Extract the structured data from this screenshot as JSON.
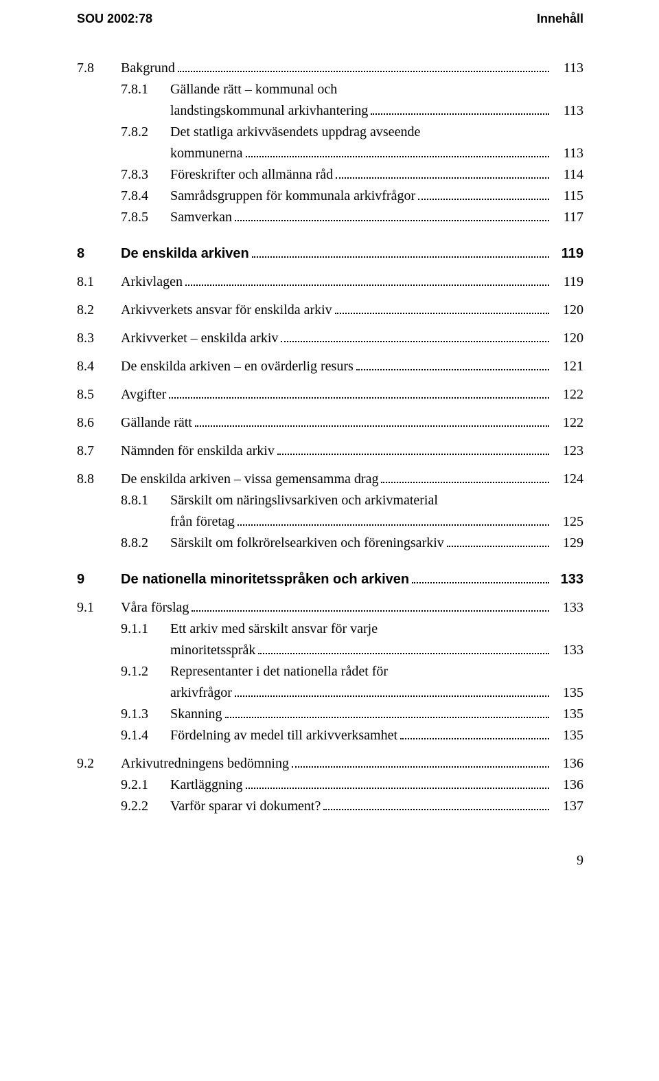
{
  "header": {
    "left": "SOU 2002:78",
    "right": "Innehåll"
  },
  "footer_page": "9",
  "toc": [
    {
      "kind": "row",
      "num": "7.8",
      "lines": [
        "Bakgrund"
      ],
      "page": "113"
    },
    {
      "kind": "sub",
      "num": "7.8.1",
      "lines": [
        "Gällande rätt – kommunal och",
        "landstingskommunal arkivhantering"
      ],
      "page": "113"
    },
    {
      "kind": "sub",
      "num": "7.8.2",
      "lines": [
        "Det statliga arkivväsendets uppdrag avseende",
        "kommunerna"
      ],
      "page": "113"
    },
    {
      "kind": "sub",
      "num": "7.8.3",
      "lines": [
        "Föreskrifter och allmänna råd"
      ],
      "page": "114"
    },
    {
      "kind": "sub",
      "num": "7.8.4",
      "lines": [
        "Samrådsgruppen för kommunala arkivfrågor"
      ],
      "page": "115"
    },
    {
      "kind": "sub",
      "num": "7.8.5",
      "lines": [
        "Samverkan"
      ],
      "page": "117"
    },
    {
      "kind": "gap-med"
    },
    {
      "kind": "chap",
      "num": "8",
      "lines": [
        "De enskilda arkiven"
      ],
      "page": "119"
    },
    {
      "kind": "gap-small"
    },
    {
      "kind": "row",
      "num": "8.1",
      "lines": [
        "Arkivlagen"
      ],
      "page": "119"
    },
    {
      "kind": "gap-small"
    },
    {
      "kind": "row",
      "num": "8.2",
      "lines": [
        "Arkivverkets ansvar för enskilda arkiv"
      ],
      "page": "120"
    },
    {
      "kind": "gap-small"
    },
    {
      "kind": "row",
      "num": "8.3",
      "lines": [
        "Arkivverket – enskilda arkiv"
      ],
      "page": "120"
    },
    {
      "kind": "gap-small"
    },
    {
      "kind": "row",
      "num": "8.4",
      "lines": [
        "De enskilda arkiven – en ovärderlig resurs"
      ],
      "page": "121"
    },
    {
      "kind": "gap-small"
    },
    {
      "kind": "row",
      "num": "8.5",
      "lines": [
        "Avgifter"
      ],
      "page": "122"
    },
    {
      "kind": "gap-small"
    },
    {
      "kind": "row",
      "num": "8.6",
      "lines": [
        "Gällande rätt"
      ],
      "page": "122"
    },
    {
      "kind": "gap-small"
    },
    {
      "kind": "row",
      "num": "8.7",
      "lines": [
        "Nämnden för enskilda arkiv"
      ],
      "page": "123"
    },
    {
      "kind": "gap-small"
    },
    {
      "kind": "row",
      "num": "8.8",
      "lines": [
        "De enskilda arkiven – vissa gemensamma drag"
      ],
      "page": "124"
    },
    {
      "kind": "sub",
      "num": "8.8.1",
      "lines": [
        "Särskilt om näringslivsarkiven och arkivmaterial",
        "från företag"
      ],
      "page": "125"
    },
    {
      "kind": "sub",
      "num": "8.8.2",
      "lines": [
        "Särskilt om folkrörelsearkiven och föreningsarkiv"
      ],
      "page": "129"
    },
    {
      "kind": "gap-med"
    },
    {
      "kind": "chap",
      "num": "9",
      "lines": [
        "De nationella minoritetsspråken och arkiven"
      ],
      "page": "133"
    },
    {
      "kind": "gap-small"
    },
    {
      "kind": "row",
      "num": "9.1",
      "lines": [
        "Våra förslag"
      ],
      "page": "133"
    },
    {
      "kind": "sub",
      "num": "9.1.1",
      "lines": [
        "Ett arkiv med särskilt ansvar för varje",
        "minoritetsspråk"
      ],
      "page": "133"
    },
    {
      "kind": "sub",
      "num": "9.1.2",
      "lines": [
        "Representanter i det nationella rådet för",
        "arkivfrågor"
      ],
      "page": "135"
    },
    {
      "kind": "sub",
      "num": "9.1.3",
      "lines": [
        "Skanning"
      ],
      "page": "135"
    },
    {
      "kind": "sub",
      "num": "9.1.4",
      "lines": [
        "Fördelning av medel till arkivverksamhet"
      ],
      "page": "135"
    },
    {
      "kind": "gap-small"
    },
    {
      "kind": "row",
      "num": "9.2",
      "lines": [
        "Arkivutredningens bedömning"
      ],
      "page": "136"
    },
    {
      "kind": "sub",
      "num": "9.2.1",
      "lines": [
        "Kartläggning"
      ],
      "page": "136"
    },
    {
      "kind": "sub",
      "num": "9.2.2",
      "lines": [
        "Varför sparar vi dokument?"
      ],
      "page": "137"
    }
  ]
}
